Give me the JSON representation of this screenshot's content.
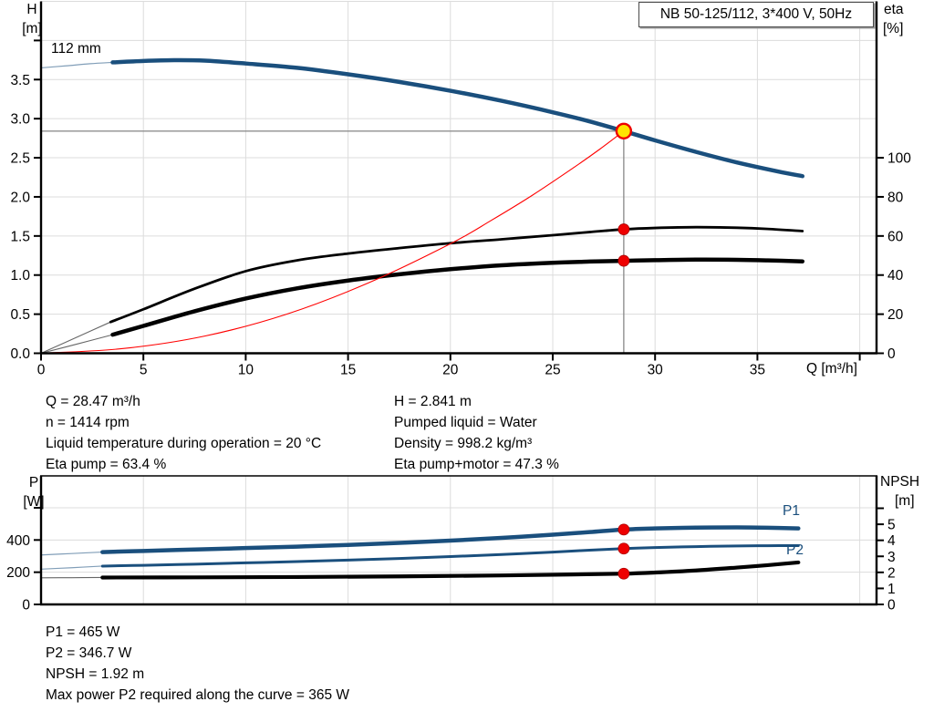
{
  "title_box": {
    "text": "NB 50-125/112, 3*400 V, 50Hz"
  },
  "colors": {
    "curve_blue": "#1a4f7d",
    "curve_black": "#000000",
    "curve_red": "#ff0000",
    "duty_fill_yellow": "#ffe400",
    "duty_ring_red": "#ee0000",
    "red_dot": "#ee0000",
    "grid": "#dcdcdc",
    "crosshair": "#8f8f8f",
    "axis": "#000000"
  },
  "top_chart": {
    "left_axis_title": "H",
    "left_axis_unit": "[m]",
    "right_axis_title": "eta",
    "right_axis_unit": "[%]",
    "x_axis_label": "Q [m³/h]",
    "curve_label": "112 mm"
  },
  "bottom_chart": {
    "left_axis_title": "P",
    "left_axis_unit": "[W]",
    "right_axis_title": "NPSH",
    "right_axis_unit": "[m]",
    "p1_label": "P1",
    "p2_label": "P2"
  },
  "info_text": {
    "left_column": [
      "Q = 28.47 m³/h",
      "n = 1414 rpm",
      "Liquid temperature during operation = 20 °C",
      "Eta pump = 63.4 %"
    ],
    "right_column": [
      "H = 2.841 m",
      "Pumped liquid = Water",
      "Density = 998.2 kg/m³",
      "Eta pump+motor = 47.3 %"
    ]
  },
  "footer_text": [
    "P1 = 465 W",
    "P2 = 346.7 W",
    "NPSH = 1.92 m",
    "Max power P2 required along the curve = 365 W"
  ],
  "chart_data": [
    {
      "type": "line",
      "title": "NB 50-125/112, 3*400 V, 50Hz",
      "xlabel": "Q [m³/h]",
      "ylabel_left": "H [m]",
      "ylabel_right": "eta [%]",
      "xlim": [
        0,
        40.82
      ],
      "ylim_left": [
        0,
        4.5
      ],
      "ylim_right": [
        0,
        180
      ],
      "grid": true,
      "x_ticks": [
        {
          "v": 0,
          "label": "0"
        },
        {
          "v": 5,
          "label": "5"
        },
        {
          "v": 10,
          "label": "10"
        },
        {
          "v": 15,
          "label": "15"
        },
        {
          "v": 20,
          "label": "20"
        },
        {
          "v": 25,
          "label": "25"
        },
        {
          "v": 30,
          "label": "30"
        },
        {
          "v": 35,
          "label": "35"
        },
        {
          "v": 40,
          "label": ""
        }
      ],
      "y_left_ticks": [
        {
          "v": 0,
          "label": "0.0"
        },
        {
          "v": 0.5,
          "label": "0.5"
        },
        {
          "v": 1,
          "label": "1.0"
        },
        {
          "v": 1.5,
          "label": "1.5"
        },
        {
          "v": 2,
          "label": "2.0"
        },
        {
          "v": 2.5,
          "label": "2.5"
        },
        {
          "v": 3,
          "label": "3.0"
        },
        {
          "v": 3.5,
          "label": "3.5"
        },
        {
          "v": 4,
          "label": ""
        },
        {
          "v": 4.5,
          "label": "",
          "grid_only": true
        }
      ],
      "y_right_ticks": [
        {
          "v": 0,
          "label": "0"
        },
        {
          "v": 20,
          "label": "20"
        },
        {
          "v": 40,
          "label": "40"
        },
        {
          "v": 60,
          "label": "60"
        },
        {
          "v": 80,
          "label": "80"
        },
        {
          "v": 100,
          "label": "100"
        }
      ],
      "crosshair": {
        "q": 28.47,
        "h": 2.841
      },
      "series": [
        {
          "name": "head-curve-lead",
          "axis": "left",
          "color": "#1a4f7d",
          "width": 1.2,
          "opacity": 0.55,
          "points": [
            [
              0,
              3.65
            ],
            [
              1.2,
              3.675
            ],
            [
              2.4,
              3.703
            ],
            [
              3.5,
              3.72
            ]
          ]
        },
        {
          "name": "head-curve-112mm",
          "axis": "left",
          "color": "#1a4f7d",
          "width": 4.5,
          "opacity": 1,
          "points": [
            [
              3.5,
              3.72
            ],
            [
              5,
              3.738
            ],
            [
              6.5,
              3.748
            ],
            [
              8,
              3.742
            ],
            [
              10,
              3.705
            ],
            [
              12.5,
              3.65
            ],
            [
              15,
              3.567
            ],
            [
              17.5,
              3.47
            ],
            [
              20,
              3.357
            ],
            [
              22.5,
              3.228
            ],
            [
              25,
              3.082
            ],
            [
              26.8,
              2.965
            ],
            [
              28.47,
              2.841
            ],
            [
              30,
              2.722
            ],
            [
              32,
              2.575
            ],
            [
              34,
              2.44
            ],
            [
              36,
              2.325
            ],
            [
              37.2,
              2.265
            ]
          ]
        },
        {
          "name": "eta-pump-lead",
          "axis": "right",
          "color": "#000000",
          "width": 1.1,
          "opacity": 0.6,
          "points": [
            [
              0,
              0
            ],
            [
              1.7,
              8
            ],
            [
              3.4,
              16
            ]
          ]
        },
        {
          "name": "eta-pump-curve",
          "axis": "right",
          "color": "#000000",
          "width": 2.8,
          "opacity": 1,
          "points": [
            [
              3.4,
              16
            ],
            [
              5,
              22.5
            ],
            [
              7.5,
              33
            ],
            [
              10,
              42
            ],
            [
              12.5,
              47.5
            ],
            [
              15,
              51
            ],
            [
              17.5,
              53.8
            ],
            [
              20,
              56.3
            ],
            [
              22.5,
              58.3
            ],
            [
              25,
              60.4
            ],
            [
              26.8,
              62
            ],
            [
              28.47,
              63.4
            ],
            [
              30,
              64.1
            ],
            [
              32,
              64.5
            ],
            [
              34,
              64.2
            ],
            [
              35.5,
              63.6
            ],
            [
              37.2,
              62.5
            ]
          ]
        },
        {
          "name": "eta-pump-motor-lead",
          "axis": "right",
          "color": "#000000",
          "width": 1.1,
          "opacity": 0.6,
          "points": [
            [
              0,
              0
            ],
            [
              1.75,
              4.7
            ],
            [
              3.5,
              9.5
            ]
          ]
        },
        {
          "name": "eta-pump-motor-curve",
          "axis": "right",
          "color": "#000000",
          "width": 4.5,
          "opacity": 1,
          "points": [
            [
              3.5,
              9.5
            ],
            [
              5,
              14
            ],
            [
              7.5,
              21.5
            ],
            [
              10,
              28
            ],
            [
              12.5,
              33.2
            ],
            [
              15,
              37.2
            ],
            [
              17.5,
              40.4
            ],
            [
              20,
              43
            ],
            [
              22.5,
              45
            ],
            [
              25,
              46.3
            ],
            [
              26.8,
              46.9
            ],
            [
              28.47,
              47.3
            ],
            [
              30,
              47.6
            ],
            [
              32,
              47.9
            ],
            [
              34,
              47.8
            ],
            [
              35.5,
              47.5
            ],
            [
              37.2,
              47
            ]
          ]
        },
        {
          "name": "affinity-parabola",
          "axis": "left",
          "color": "#ff0000",
          "width": 1.1,
          "opacity": 1,
          "points": [
            [
              0,
              0
            ],
            [
              4,
              0.06
            ],
            [
              8,
              0.22
            ],
            [
              12,
              0.5
            ],
            [
              16,
              0.9
            ],
            [
              20,
              1.4
            ],
            [
              22,
              1.7
            ],
            [
              24,
              2.02
            ],
            [
              26,
              2.37
            ],
            [
              27.3,
              2.61
            ],
            [
              28.47,
              2.841
            ]
          ]
        }
      ],
      "markers": [
        {
          "name": "duty-point",
          "axis": "left",
          "q": 28.47,
          "v": 2.841,
          "style": "duty"
        },
        {
          "name": "eta-pump-duty-dot",
          "axis": "right",
          "q": 28.47,
          "v": 63.4,
          "style": "red-dot"
        },
        {
          "name": "eta-pump-motor-duty-dot",
          "axis": "right",
          "q": 28.47,
          "v": 47.3,
          "style": "red-dot"
        }
      ]
    },
    {
      "type": "line",
      "title": "Power and NPSH curves",
      "xlabel": "",
      "ylabel_left": "P [W]",
      "ylabel_right": "NPSH [m]",
      "xlim": [
        0,
        40.82
      ],
      "ylim_left": [
        0,
        798
      ],
      "ylim_right": [
        0,
        8.02
      ],
      "grid": true,
      "top_border": true,
      "x_ticks": [
        {
          "v": 5,
          "label": "",
          "grid_only": true
        },
        {
          "v": 10,
          "label": "",
          "grid_only": true
        },
        {
          "v": 15,
          "label": "",
          "grid_only": true
        },
        {
          "v": 20,
          "label": "",
          "grid_only": true
        },
        {
          "v": 25,
          "label": "",
          "grid_only": true
        },
        {
          "v": 30,
          "label": "",
          "grid_only": true
        },
        {
          "v": 35,
          "label": "",
          "grid_only": true
        },
        {
          "v": 40,
          "label": "",
          "grid_only": true
        }
      ],
      "y_left_ticks": [
        {
          "v": 0,
          "label": "0"
        },
        {
          "v": 200,
          "label": "200"
        },
        {
          "v": 400,
          "label": "400"
        },
        {
          "v": 600,
          "label": ""
        }
      ],
      "y_right_ticks": [
        {
          "v": 0,
          "label": "0"
        },
        {
          "v": 1,
          "label": "1"
        },
        {
          "v": 2,
          "label": "2"
        },
        {
          "v": 3,
          "label": "3"
        },
        {
          "v": 4,
          "label": "4"
        },
        {
          "v": 5,
          "label": "5"
        },
        {
          "v": 6,
          "label": ""
        }
      ],
      "series": [
        {
          "name": "p1-curve-lead",
          "axis": "left",
          "color": "#1a4f7d",
          "width": 1.2,
          "opacity": 0.55,
          "points": [
            [
              0,
              307
            ],
            [
              1.5,
              316
            ],
            [
              3,
              325
            ]
          ]
        },
        {
          "name": "p1-curve",
          "axis": "left",
          "color": "#1a4f7d",
          "width": 4.5,
          "opacity": 1,
          "points": [
            [
              3,
              325
            ],
            [
              5,
              332
            ],
            [
              7.5,
              341
            ],
            [
              10,
              350
            ],
            [
              12.5,
              359
            ],
            [
              15,
              369
            ],
            [
              17.5,
              382
            ],
            [
              20,
              396
            ],
            [
              22.5,
              413
            ],
            [
              25,
              433
            ],
            [
              26.8,
              449
            ],
            [
              28.47,
              465
            ],
            [
              30,
              472
            ],
            [
              32,
              477
            ],
            [
              34,
              478
            ],
            [
              35.5,
              476
            ],
            [
              37,
              472
            ]
          ]
        },
        {
          "name": "p2-curve-lead",
          "axis": "left",
          "color": "#1a4f7d",
          "width": 1.2,
          "opacity": 0.55,
          "points": [
            [
              0,
              219
            ],
            [
              1.5,
              228
            ],
            [
              3,
              238
            ]
          ]
        },
        {
          "name": "p2-curve",
          "axis": "left",
          "color": "#1a4f7d",
          "width": 3,
          "opacity": 1,
          "points": [
            [
              3,
              238
            ],
            [
              5,
              243
            ],
            [
              7.5,
              250
            ],
            [
              10,
              258
            ],
            [
              12.5,
              266
            ],
            [
              15,
              275
            ],
            [
              17.5,
              285
            ],
            [
              20,
              297
            ],
            [
              22.5,
              310
            ],
            [
              25,
              325
            ],
            [
              26.8,
              337
            ],
            [
              28.47,
              346.7
            ],
            [
              30,
              353
            ],
            [
              32,
              359
            ],
            [
              34,
              363
            ],
            [
              35.5,
              364.5
            ],
            [
              37,
              365
            ]
          ]
        },
        {
          "name": "npsh-curve-lead",
          "axis": "right",
          "color": "#000000",
          "width": 1.1,
          "opacity": 0.6,
          "points": [
            [
              0,
              1.66
            ],
            [
              1.5,
              1.67
            ],
            [
              3,
              1.68
            ]
          ]
        },
        {
          "name": "npsh-curve",
          "axis": "right",
          "color": "#000000",
          "width": 4.2,
          "opacity": 1,
          "points": [
            [
              3,
              1.68
            ],
            [
              7.5,
              1.69
            ],
            [
              12.5,
              1.71
            ],
            [
              17.5,
              1.75
            ],
            [
              22.5,
              1.81
            ],
            [
              26,
              1.87
            ],
            [
              28.47,
              1.92
            ],
            [
              30,
              1.99
            ],
            [
              32,
              2.12
            ],
            [
              34,
              2.3
            ],
            [
              35.5,
              2.45
            ],
            [
              37,
              2.62
            ]
          ]
        }
      ],
      "markers": [
        {
          "name": "p1-duty-dot",
          "axis": "left",
          "q": 28.47,
          "v": 465,
          "style": "red-dot"
        },
        {
          "name": "p2-duty-dot",
          "axis": "left",
          "q": 28.47,
          "v": 346.7,
          "style": "red-dot"
        },
        {
          "name": "npsh-duty-dot",
          "axis": "right",
          "q": 28.47,
          "v": 1.92,
          "style": "red-dot"
        }
      ]
    }
  ]
}
